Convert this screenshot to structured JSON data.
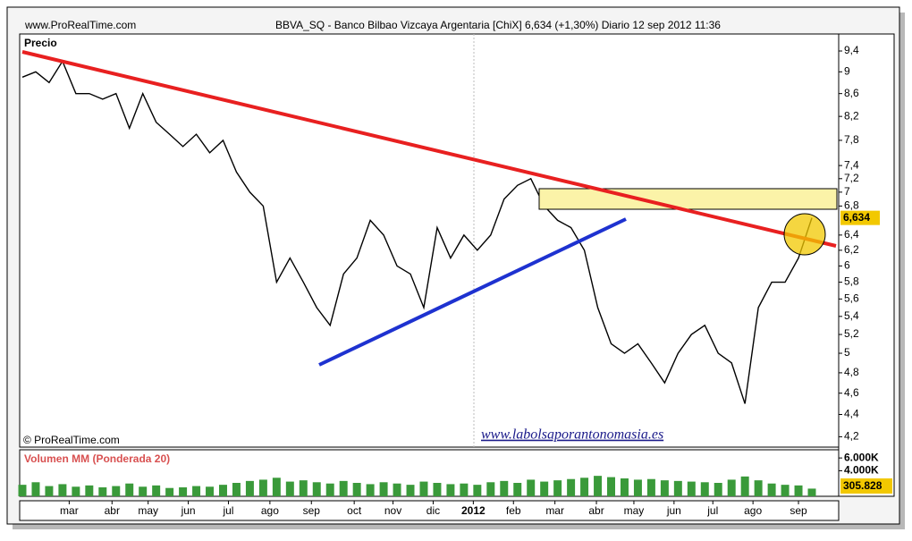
{
  "chart_data": {
    "type": "line",
    "site": "www.ProRealTime.com",
    "title": "BBVA_SQ - Banco Bilbao Vizcaya Argentaria  [ChiX]   6,634 (+1,30%)   Diario  12 sep 2012 11:36",
    "panel_label": "Precio",
    "copyright": "© ProRealTime.com",
    "watermark": "www.labolsaporantonomasia.es",
    "log_scale": true,
    "ylim": [
      4.11,
      9.74
    ],
    "yticks": [
      {
        "value": 9.4,
        "label": "9,4"
      },
      9,
      {
        "value": 8.6,
        "label": "8,6"
      },
      {
        "value": 8.2,
        "label": "8,2"
      },
      {
        "value": 7.8,
        "label": "7,8"
      },
      {
        "value": 7.4,
        "label": "7,4"
      },
      {
        "value": 7.2,
        "label": "7,2"
      },
      7,
      {
        "value": 6.8,
        "label": "6,8"
      },
      {
        "value": 6.4,
        "label": "6,4"
      },
      {
        "value": 6.2,
        "label": "6,2"
      },
      6,
      {
        "value": 5.8,
        "label": "5,8"
      },
      {
        "value": 5.6,
        "label": "5,6"
      },
      {
        "value": 5.4,
        "label": "5,4"
      },
      {
        "value": 5.2,
        "label": "5,2"
      },
      5,
      {
        "value": 4.8,
        "label": "4,8"
      },
      {
        "value": 4.6,
        "label": "4,6"
      },
      {
        "value": 4.4,
        "label": "4,4"
      },
      {
        "value": 4.2,
        "label": "4,2"
      }
    ],
    "xlim": [
      0,
      59
    ],
    "xticks": [
      {
        "value": 3.5,
        "label": "mar"
      },
      {
        "value": 6.7,
        "label": "abr"
      },
      {
        "value": 9.4,
        "label": "may"
      },
      {
        "value": 12.4,
        "label": "jun"
      },
      {
        "value": 15.4,
        "label": "jul"
      },
      {
        "value": 18.5,
        "label": "ago"
      },
      {
        "value": 21.6,
        "label": "sep"
      },
      {
        "value": 24.8,
        "label": "oct"
      },
      {
        "value": 27.7,
        "label": "nov"
      },
      {
        "value": 30.7,
        "label": "dic"
      },
      {
        "value": 33.7,
        "label": "2012"
      },
      {
        "value": 36.7,
        "label": "feb"
      },
      {
        "value": 39.8,
        "label": "mar"
      },
      {
        "value": 42.9,
        "label": "abr"
      },
      {
        "value": 45.7,
        "label": "may"
      },
      {
        "value": 48.7,
        "label": "jun"
      },
      {
        "value": 51.6,
        "label": "jul"
      },
      {
        "value": 54.6,
        "label": "ago"
      },
      {
        "value": 58,
        "label": "sep"
      }
    ],
    "series": [
      {
        "color": "#000000",
        "values": [
          8.9,
          9.0,
          8.8,
          9.2,
          8.6,
          8.6,
          8.5,
          8.6,
          8.0,
          8.6,
          8.1,
          7.9,
          7.7,
          7.9,
          7.6,
          7.8,
          7.3,
          7.0,
          6.8,
          5.8,
          6.1,
          5.8,
          5.5,
          5.3,
          5.9,
          6.1,
          6.6,
          6.4,
          6.0,
          5.9,
          5.5,
          6.5,
          6.1,
          6.4,
          6.2,
          6.4,
          6.9,
          7.1,
          7.2,
          6.8,
          6.6,
          6.5,
          6.2,
          5.5,
          5.1,
          5.0,
          5.1,
          4.9,
          4.7,
          5.0,
          5.2,
          5.3,
          5.0,
          4.9,
          4.5,
          5.5,
          5.8,
          5.8,
          6.1,
          6.634
        ]
      }
    ],
    "last_price": {
      "value": 6.634,
      "label": "6,634"
    },
    "volume": {
      "title": "Volumen MM (Ponderada 20)",
      "color": "#3a9a3a",
      "ylim": [
        0,
        7000
      ],
      "yticks": [
        {
          "value": 6000,
          "label": "6.000K"
        },
        {
          "value": 4000,
          "label": "4.000K"
        }
      ],
      "values": [
        1800,
        2200,
        1600,
        1900,
        1500,
        1700,
        1400,
        1600,
        2000,
        1500,
        1700,
        1300,
        1400,
        1600,
        1500,
        1800,
        2100,
        2400,
        2600,
        2900,
        2300,
        2500,
        2200,
        2000,
        2400,
        2100,
        1900,
        2200,
        2000,
        1800,
        2300,
        2100,
        1900,
        2000,
        1800,
        2200,
        2400,
        2100,
        2600,
        2300,
        2500,
        2700,
        2900,
        3200,
        3000,
        2800,
        2600,
        2700,
        2500,
        2400,
        2300,
        2200,
        2100,
        2600,
        3100,
        2500,
        2000,
        1800,
        1700,
        1200
      ],
      "last_label": "305.828"
    }
  }
}
